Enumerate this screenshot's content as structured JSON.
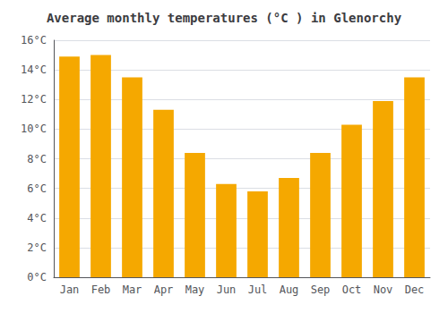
{
  "chart_data": {
    "type": "bar",
    "title": "Average monthly temperatures (°C ) in Glenorchy",
    "categories": [
      "Jan",
      "Feb",
      "Mar",
      "Apr",
      "May",
      "Jun",
      "Jul",
      "Aug",
      "Sep",
      "Oct",
      "Nov",
      "Dec"
    ],
    "values": [
      14.9,
      15.0,
      13.5,
      11.3,
      8.4,
      6.3,
      5.8,
      6.7,
      8.4,
      10.3,
      11.9,
      13.5
    ],
    "color": "#F5A800",
    "ylim": [
      0,
      16
    ],
    "yticks": [
      {
        "value": 0,
        "label": "0°C"
      },
      {
        "value": 2,
        "label": "2°C"
      },
      {
        "value": 4,
        "label": "4°C"
      },
      {
        "value": 6,
        "label": "6°C"
      },
      {
        "value": 8,
        "label": "8°C"
      },
      {
        "value": 10,
        "label": "10°C"
      },
      {
        "value": 12,
        "label": "12°C"
      },
      {
        "value": 14,
        "label": "14°C"
      },
      {
        "value": 16,
        "label": "16°C"
      }
    ],
    "grid": true
  }
}
